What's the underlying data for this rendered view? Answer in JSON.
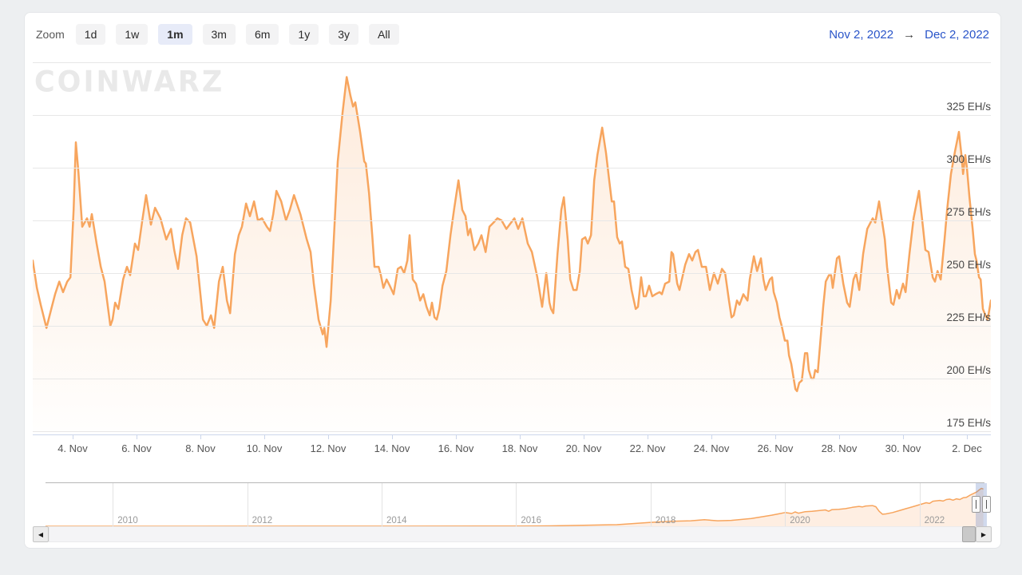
{
  "toolbar": {
    "zoom_label": "Zoom",
    "buttons": [
      {
        "label": "1d",
        "selected": false
      },
      {
        "label": "1w",
        "selected": false
      },
      {
        "label": "1m",
        "selected": true
      },
      {
        "label": "3m",
        "selected": false
      },
      {
        "label": "6m",
        "selected": false
      },
      {
        "label": "1y",
        "selected": false
      },
      {
        "label": "3y",
        "selected": false
      },
      {
        "label": "All",
        "selected": false
      }
    ]
  },
  "date_range": {
    "from": "Nov 2, 2022",
    "arrow": "→",
    "to": "Dec 2, 2022"
  },
  "watermark": {
    "text": "COINWARZ"
  },
  "icons": {
    "scroll_left": "◀",
    "scroll_right": "▶"
  },
  "colors": {
    "series_line": "#f7a55e",
    "series_fill_top": "rgba(247,163,92,0.22)",
    "series_fill_bottom": "rgba(247,163,92,0.01)",
    "nav_fill": "rgba(247,163,92,0.18)",
    "date_link": "#2a55c9",
    "selected_button_bg": "#e7ebf8",
    "axis_line": "#ccd6eb",
    "gridline": "#e7e7e7"
  },
  "chart_data": {
    "type": "area",
    "unit": "EH/s",
    "x_range": {
      "start_label": "Nov 2, 2022",
      "end_label": "Dec 2, 2022",
      "days_span": [
        0.75,
        30.75
      ]
    },
    "ylim": [
      175,
      350
    ],
    "y_gridlines": [
      350,
      325,
      300,
      275,
      250,
      225,
      200,
      175
    ],
    "y_ticks": [
      {
        "label": "325 EH/s",
        "value": 325
      },
      {
        "label": "300 EH/s",
        "value": 300
      },
      {
        "label": "275 EH/s",
        "value": 275
      },
      {
        "label": "250 EH/s",
        "value": 250
      },
      {
        "label": "225 EH/s",
        "value": 225
      },
      {
        "label": "200 EH/s",
        "value": 200
      },
      {
        "label": "175 EH/s",
        "value": 175
      }
    ],
    "x_ticks": [
      {
        "label": "4. Nov",
        "day": 2
      },
      {
        "label": "6. Nov",
        "day": 4
      },
      {
        "label": "8. Nov",
        "day": 6
      },
      {
        "label": "10. Nov",
        "day": 8
      },
      {
        "label": "12. Nov",
        "day": 10
      },
      {
        "label": "14. Nov",
        "day": 12
      },
      {
        "label": "16. Nov",
        "day": 14
      },
      {
        "label": "18. Nov",
        "day": 16
      },
      {
        "label": "20. Nov",
        "day": 18
      },
      {
        "label": "22. Nov",
        "day": 20
      },
      {
        "label": "24. Nov",
        "day": 22
      },
      {
        "label": "26. Nov",
        "day": 24
      },
      {
        "label": "28. Nov",
        "day": 26
      },
      {
        "label": "30. Nov",
        "day": 28
      },
      {
        "label": "2. Dec",
        "day": 30
      }
    ],
    "points_x_unit": "days since Nov 2, 2022",
    "points": [
      [
        0.75,
        256
      ],
      [
        0.88,
        243
      ],
      [
        1.0,
        235
      ],
      [
        1.18,
        224
      ],
      [
        1.33,
        233
      ],
      [
        1.45,
        240
      ],
      [
        1.58,
        246
      ],
      [
        1.7,
        241
      ],
      [
        1.83,
        246
      ],
      [
        1.93,
        248
      ],
      [
        2.03,
        280
      ],
      [
        2.1,
        312
      ],
      [
        2.18,
        298
      ],
      [
        2.3,
        272
      ],
      [
        2.45,
        276
      ],
      [
        2.53,
        272
      ],
      [
        2.6,
        278
      ],
      [
        2.75,
        264
      ],
      [
        2.88,
        253
      ],
      [
        3.0,
        246
      ],
      [
        3.18,
        225
      ],
      [
        3.25,
        228
      ],
      [
        3.33,
        236
      ],
      [
        3.43,
        233
      ],
      [
        3.58,
        247
      ],
      [
        3.7,
        253
      ],
      [
        3.8,
        249
      ],
      [
        3.95,
        264
      ],
      [
        4.05,
        261
      ],
      [
        4.18,
        275
      ],
      [
        4.3,
        287
      ],
      [
        4.45,
        273
      ],
      [
        4.58,
        281
      ],
      [
        4.75,
        276
      ],
      [
        4.93,
        266
      ],
      [
        5.08,
        271
      ],
      [
        5.18,
        261
      ],
      [
        5.3,
        252
      ],
      [
        5.43,
        268
      ],
      [
        5.55,
        276
      ],
      [
        5.68,
        274
      ],
      [
        5.88,
        258
      ],
      [
        6.08,
        228
      ],
      [
        6.2,
        225
      ],
      [
        6.33,
        230
      ],
      [
        6.43,
        224
      ],
      [
        6.58,
        246
      ],
      [
        6.7,
        253
      ],
      [
        6.83,
        237
      ],
      [
        6.93,
        231
      ],
      [
        7.08,
        259
      ],
      [
        7.2,
        268
      ],
      [
        7.3,
        272
      ],
      [
        7.43,
        283
      ],
      [
        7.55,
        277
      ],
      [
        7.68,
        284
      ],
      [
        7.8,
        275
      ],
      [
        7.93,
        276
      ],
      [
        8.08,
        272
      ],
      [
        8.18,
        270
      ],
      [
        8.28,
        278
      ],
      [
        8.38,
        289
      ],
      [
        8.53,
        284
      ],
      [
        8.68,
        275
      ],
      [
        8.8,
        280
      ],
      [
        8.93,
        287
      ],
      [
        9.13,
        278
      ],
      [
        9.33,
        266
      ],
      [
        9.45,
        260
      ],
      [
        9.55,
        245
      ],
      [
        9.7,
        228
      ],
      [
        9.83,
        221
      ],
      [
        9.88,
        224
      ],
      [
        9.95,
        215
      ],
      [
        10.08,
        237
      ],
      [
        10.18,
        267
      ],
      [
        10.3,
        303
      ],
      [
        10.45,
        326
      ],
      [
        10.58,
        343
      ],
      [
        10.7,
        334
      ],
      [
        10.78,
        329
      ],
      [
        10.85,
        331
      ],
      [
        11.0,
        317
      ],
      [
        11.13,
        303
      ],
      [
        11.18,
        302
      ],
      [
        11.28,
        288
      ],
      [
        11.38,
        268
      ],
      [
        11.45,
        253
      ],
      [
        11.58,
        253
      ],
      [
        11.65,
        249
      ],
      [
        11.73,
        243
      ],
      [
        11.83,
        247
      ],
      [
        11.93,
        244
      ],
      [
        12.05,
        240
      ],
      [
        12.18,
        252
      ],
      [
        12.28,
        253
      ],
      [
        12.38,
        250
      ],
      [
        12.48,
        256
      ],
      [
        12.55,
        268
      ],
      [
        12.65,
        247
      ],
      [
        12.75,
        245
      ],
      [
        12.88,
        237
      ],
      [
        12.98,
        240
      ],
      [
        13.08,
        234
      ],
      [
        13.18,
        230
      ],
      [
        13.25,
        236
      ],
      [
        13.33,
        229
      ],
      [
        13.4,
        228
      ],
      [
        13.48,
        233
      ],
      [
        13.58,
        244
      ],
      [
        13.7,
        251
      ],
      [
        13.83,
        268
      ],
      [
        13.95,
        281
      ],
      [
        14.08,
        294
      ],
      [
        14.2,
        280
      ],
      [
        14.3,
        277
      ],
      [
        14.38,
        268
      ],
      [
        14.45,
        271
      ],
      [
        14.58,
        261
      ],
      [
        14.7,
        264
      ],
      [
        14.8,
        268
      ],
      [
        14.93,
        260
      ],
      [
        15.05,
        272
      ],
      [
        15.18,
        274
      ],
      [
        15.3,
        276
      ],
      [
        15.43,
        275
      ],
      [
        15.58,
        271
      ],
      [
        15.68,
        273
      ],
      [
        15.83,
        276
      ],
      [
        15.95,
        271
      ],
      [
        16.08,
        276
      ],
      [
        16.25,
        264
      ],
      [
        16.38,
        260
      ],
      [
        16.55,
        248
      ],
      [
        16.7,
        234
      ],
      [
        16.83,
        250
      ],
      [
        16.93,
        236
      ],
      [
        16.98,
        233
      ],
      [
        17.05,
        231
      ],
      [
        17.18,
        259
      ],
      [
        17.3,
        280
      ],
      [
        17.38,
        286
      ],
      [
        17.5,
        266
      ],
      [
        17.58,
        247
      ],
      [
        17.68,
        242
      ],
      [
        17.78,
        242
      ],
      [
        17.88,
        251
      ],
      [
        17.95,
        266
      ],
      [
        18.05,
        267
      ],
      [
        18.13,
        264
      ],
      [
        18.23,
        268
      ],
      [
        18.33,
        294
      ],
      [
        18.43,
        306
      ],
      [
        18.58,
        319
      ],
      [
        18.7,
        307
      ],
      [
        18.8,
        294
      ],
      [
        18.88,
        284
      ],
      [
        18.95,
        284
      ],
      [
        19.05,
        267
      ],
      [
        19.13,
        264
      ],
      [
        19.2,
        265
      ],
      [
        19.3,
        253
      ],
      [
        19.4,
        252
      ],
      [
        19.5,
        242
      ],
      [
        19.63,
        233
      ],
      [
        19.7,
        234
      ],
      [
        19.8,
        248
      ],
      [
        19.88,
        239
      ],
      [
        19.95,
        239
      ],
      [
        20.05,
        244
      ],
      [
        20.15,
        239
      ],
      [
        20.25,
        240
      ],
      [
        20.38,
        241
      ],
      [
        20.45,
        240
      ],
      [
        20.55,
        245
      ],
      [
        20.68,
        246
      ],
      [
        20.75,
        260
      ],
      [
        20.8,
        259
      ],
      [
        20.93,
        245
      ],
      [
        21.0,
        242
      ],
      [
        21.18,
        254
      ],
      [
        21.3,
        259
      ],
      [
        21.4,
        256
      ],
      [
        21.5,
        260
      ],
      [
        21.58,
        261
      ],
      [
        21.7,
        253
      ],
      [
        21.83,
        253
      ],
      [
        21.95,
        242
      ],
      [
        22.08,
        250
      ],
      [
        22.2,
        245
      ],
      [
        22.33,
        252
      ],
      [
        22.43,
        250
      ],
      [
        22.55,
        237
      ],
      [
        22.63,
        229
      ],
      [
        22.7,
        230
      ],
      [
        22.8,
        237
      ],
      [
        22.88,
        235
      ],
      [
        23.0,
        240
      ],
      [
        23.13,
        237
      ],
      [
        23.2,
        247
      ],
      [
        23.33,
        258
      ],
      [
        23.43,
        251
      ],
      [
        23.55,
        257
      ],
      [
        23.63,
        247
      ],
      [
        23.7,
        242
      ],
      [
        23.83,
        247
      ],
      [
        23.9,
        248
      ],
      [
        23.95,
        241
      ],
      [
        24.05,
        236
      ],
      [
        24.13,
        229
      ],
      [
        24.2,
        225
      ],
      [
        24.3,
        218
      ],
      [
        24.38,
        218
      ],
      [
        24.43,
        211
      ],
      [
        24.5,
        207
      ],
      [
        24.63,
        195
      ],
      [
        24.68,
        194
      ],
      [
        24.75,
        198
      ],
      [
        24.83,
        199
      ],
      [
        24.93,
        212
      ],
      [
        25.0,
        212
      ],
      [
        25.05,
        204
      ],
      [
        25.13,
        200
      ],
      [
        25.2,
        200
      ],
      [
        25.25,
        204
      ],
      [
        25.33,
        203
      ],
      [
        25.43,
        221
      ],
      [
        25.5,
        234
      ],
      [
        25.58,
        246
      ],
      [
        25.68,
        249
      ],
      [
        25.75,
        249
      ],
      [
        25.8,
        243
      ],
      [
        25.93,
        257
      ],
      [
        26.0,
        258
      ],
      [
        26.13,
        245
      ],
      [
        26.25,
        236
      ],
      [
        26.33,
        234
      ],
      [
        26.45,
        247
      ],
      [
        26.53,
        250
      ],
      [
        26.63,
        242
      ],
      [
        26.75,
        259
      ],
      [
        26.88,
        271
      ],
      [
        27.05,
        276
      ],
      [
        27.13,
        274
      ],
      [
        27.25,
        284
      ],
      [
        27.33,
        276
      ],
      [
        27.43,
        266
      ],
      [
        27.5,
        253
      ],
      [
        27.63,
        236
      ],
      [
        27.7,
        235
      ],
      [
        27.8,
        242
      ],
      [
        27.88,
        238
      ],
      [
        28.0,
        245
      ],
      [
        28.08,
        241
      ],
      [
        28.2,
        259
      ],
      [
        28.33,
        276
      ],
      [
        28.5,
        289
      ],
      [
        28.63,
        271
      ],
      [
        28.7,
        261
      ],
      [
        28.8,
        260
      ],
      [
        28.93,
        248
      ],
      [
        29.0,
        246
      ],
      [
        29.08,
        251
      ],
      [
        29.18,
        247
      ],
      [
        29.3,
        266
      ],
      [
        29.38,
        280
      ],
      [
        29.5,
        297
      ],
      [
        29.63,
        308
      ],
      [
        29.75,
        317
      ],
      [
        29.83,
        306
      ],
      [
        29.88,
        297
      ],
      [
        29.95,
        306
      ],
      [
        30.0,
        300
      ],
      [
        30.08,
        286
      ],
      [
        30.18,
        271
      ],
      [
        30.25,
        259
      ],
      [
        30.3,
        256
      ],
      [
        30.38,
        248
      ],
      [
        30.43,
        247
      ],
      [
        30.5,
        233
      ],
      [
        30.58,
        230
      ],
      [
        30.65,
        228
      ],
      [
        30.75,
        237
      ]
    ],
    "navigator": {
      "year_ticks": [
        2010,
        2012,
        2014,
        2016,
        2018,
        2020,
        2022
      ],
      "ymax": 330,
      "points": [
        [
          2009,
          0
        ],
        [
          2014,
          0.5
        ],
        [
          2015.5,
          1
        ],
        [
          2016,
          2
        ],
        [
          2016.5,
          3
        ],
        [
          2017,
          8
        ],
        [
          2017.5,
          12
        ],
        [
          2018,
          30
        ],
        [
          2018.3,
          38
        ],
        [
          2018.6,
          42
        ],
        [
          2018.8,
          50
        ],
        [
          2019.0,
          42
        ],
        [
          2019.2,
          45
        ],
        [
          2019.5,
          60
        ],
        [
          2019.8,
          85
        ],
        [
          2019.9,
          95
        ],
        [
          2020.0,
          105
        ],
        [
          2020.1,
          98
        ],
        [
          2020.15,
          110
        ],
        [
          2020.2,
          100
        ],
        [
          2020.3,
          112
        ],
        [
          2020.4,
          115
        ],
        [
          2020.5,
          120
        ],
        [
          2020.6,
          125
        ],
        [
          2020.65,
          115
        ],
        [
          2020.7,
          128
        ],
        [
          2020.8,
          130
        ],
        [
          2020.9,
          135
        ],
        [
          2021.0,
          145
        ],
        [
          2021.1,
          152
        ],
        [
          2021.15,
          148
        ],
        [
          2021.2,
          155
        ],
        [
          2021.3,
          158
        ],
        [
          2021.35,
          150
        ],
        [
          2021.4,
          115
        ],
        [
          2021.45,
          92
        ],
        [
          2021.5,
          95
        ],
        [
          2021.6,
          105
        ],
        [
          2021.7,
          120
        ],
        [
          2021.8,
          135
        ],
        [
          2021.9,
          150
        ],
        [
          2022.0,
          165
        ],
        [
          2022.1,
          180
        ],
        [
          2022.15,
          175
        ],
        [
          2022.2,
          192
        ],
        [
          2022.3,
          198
        ],
        [
          2022.35,
          193
        ],
        [
          2022.4,
          205
        ],
        [
          2022.45,
          208
        ],
        [
          2022.5,
          200
        ],
        [
          2022.55,
          210
        ],
        [
          2022.6,
          205
        ],
        [
          2022.65,
          218
        ],
        [
          2022.7,
          222
        ],
        [
          2022.75,
          238
        ],
        [
          2022.8,
          250
        ],
        [
          2022.85,
          262
        ],
        [
          2022.88,
          275
        ],
        [
          2022.92,
          290
        ],
        [
          2022.95,
          285
        ]
      ]
    }
  }
}
